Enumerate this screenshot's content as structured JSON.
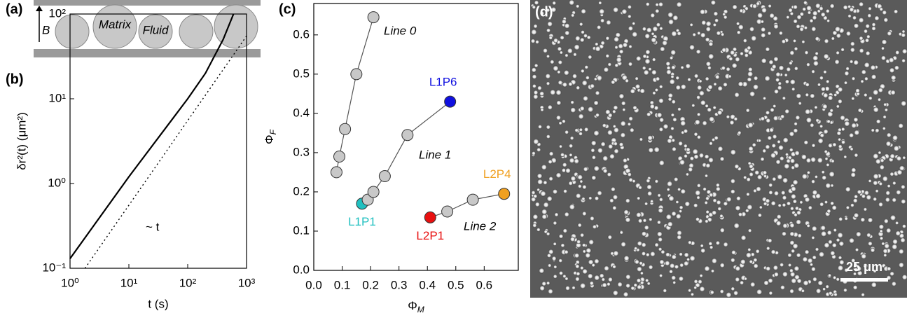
{
  "schematic": {
    "panel_label": "(a)",
    "field_label": "B",
    "circle_labels": [
      "Matrix",
      "Fluid"
    ]
  },
  "micrograph": {
    "panel_label": "(d)",
    "scale_bar": "25 μm"
  },
  "chart_data": [
    {
      "type": "line",
      "panel_label": "(b)",
      "xscale": "log",
      "yscale": "log",
      "x_label": "t (s)",
      "y_label": "δr²(t) (μm²)",
      "annotation": "~ t",
      "xlim": [
        1,
        1000
      ],
      "ylim": [
        0.1,
        100
      ],
      "xticks": [
        {
          "value": 1,
          "label": "10⁰"
        },
        {
          "value": 10,
          "label": "10¹"
        },
        {
          "value": 100,
          "label": "10²"
        },
        {
          "value": 1000,
          "label": "10³"
        }
      ],
      "yticks": [
        {
          "value": 0.1,
          "label": "10⁻¹"
        },
        {
          "value": 1,
          "label": "10⁰"
        },
        {
          "value": 10,
          "label": "10¹"
        },
        {
          "value": 100,
          "label": "10²"
        }
      ],
      "series": [
        {
          "color": "#000000",
          "style": "solid",
          "x": [
            1,
            10,
            100,
            200,
            400,
            600
          ],
          "values": [
            0.13,
            1.2,
            10,
            20,
            50,
            100
          ]
        },
        {
          "color": "#000000",
          "style": "dotted",
          "x": [
            1.8,
            1000
          ],
          "values": [
            0.1,
            55
          ]
        }
      ]
    },
    {
      "type": "scatter",
      "panel_label": "(c)",
      "x_label": {
        "symbol": "Φ",
        "sub": "M"
      },
      "y_label": {
        "symbol": "Φ",
        "sub": "F"
      },
      "xlim": [
        0,
        0.72
      ],
      "ylim": [
        0,
        0.68
      ],
      "xticks": [
        {
          "value": 0,
          "label": "0.0"
        },
        0.1,
        0.2,
        0.3,
        0.4,
        0.5,
        0.6
      ],
      "yticks": [
        {
          "value": 0,
          "label": "0.0"
        },
        0.1,
        0.2,
        0.3,
        0.4,
        0.5,
        0.6
      ],
      "series": [
        {
          "name": "Line 0",
          "x": [
            0.08,
            0.09,
            0.11,
            0.15,
            0.21
          ],
          "values": [
            0.25,
            0.29,
            0.36,
            0.5,
            0.645
          ],
          "point_colors": [
            "#c8c8c8",
            "#c8c8c8",
            "#c8c8c8",
            "#c8c8c8",
            "#c8c8c8"
          ],
          "point_labels": [
            null,
            null,
            null,
            null,
            null
          ]
        },
        {
          "name": "Line 1",
          "x": [
            0.17,
            0.19,
            0.21,
            0.25,
            0.33,
            0.48
          ],
          "values": [
            0.17,
            0.18,
            0.2,
            0.24,
            0.345,
            0.43
          ],
          "point_colors": [
            "#20c0c0",
            "#c8c8c8",
            "#c8c8c8",
            "#c8c8c8",
            "#c8c8c8",
            "#1010e0"
          ],
          "point_labels": [
            "L1P1",
            null,
            null,
            null,
            null,
            "L1P6"
          ]
        },
        {
          "name": "Line 2",
          "x": [
            0.41,
            0.47,
            0.56,
            0.67
          ],
          "values": [
            0.135,
            0.15,
            0.18,
            0.195
          ],
          "point_colors": [
            "#e81010",
            "#c8c8c8",
            "#c8c8c8",
            "#f0a020"
          ],
          "point_labels": [
            "L2P1",
            null,
            null,
            "L2P4"
          ]
        }
      ]
    }
  ]
}
